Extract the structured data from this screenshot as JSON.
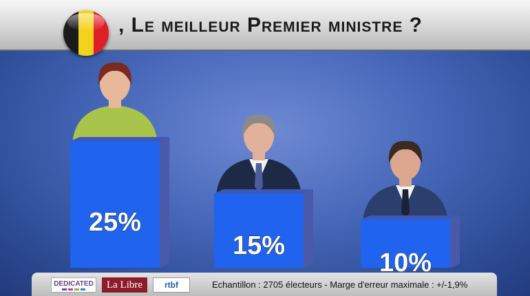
{
  "header": {
    "title": ", Le meilleur Premier ministre ?",
    "flag_colors": [
      "#1a1a1a",
      "#f2d21b",
      "#e01e26"
    ]
  },
  "colors": {
    "background": "#4566b7",
    "bar_front": "#1f63ee",
    "bar_side": "#4a5aa8",
    "header": "#d6d6d6",
    "percent_text": "#ffffff"
  },
  "chart_data": {
    "type": "bar",
    "categories": [
      "",
      "",
      ""
    ],
    "values": [
      25,
      15,
      10
    ],
    "value_labels": [
      "25%",
      "15%",
      "10%"
    ],
    "unit": "%",
    "title": ", Le meilleur Premier ministre ?",
    "grid": false,
    "legend": "none"
  },
  "footer": {
    "logos": [
      "DEDICATED",
      "La Libre",
      "rtbf"
    ],
    "text": "Echantillon : 2705 électeurs  - Marge d'erreur maximale  : +/-1,9%"
  }
}
